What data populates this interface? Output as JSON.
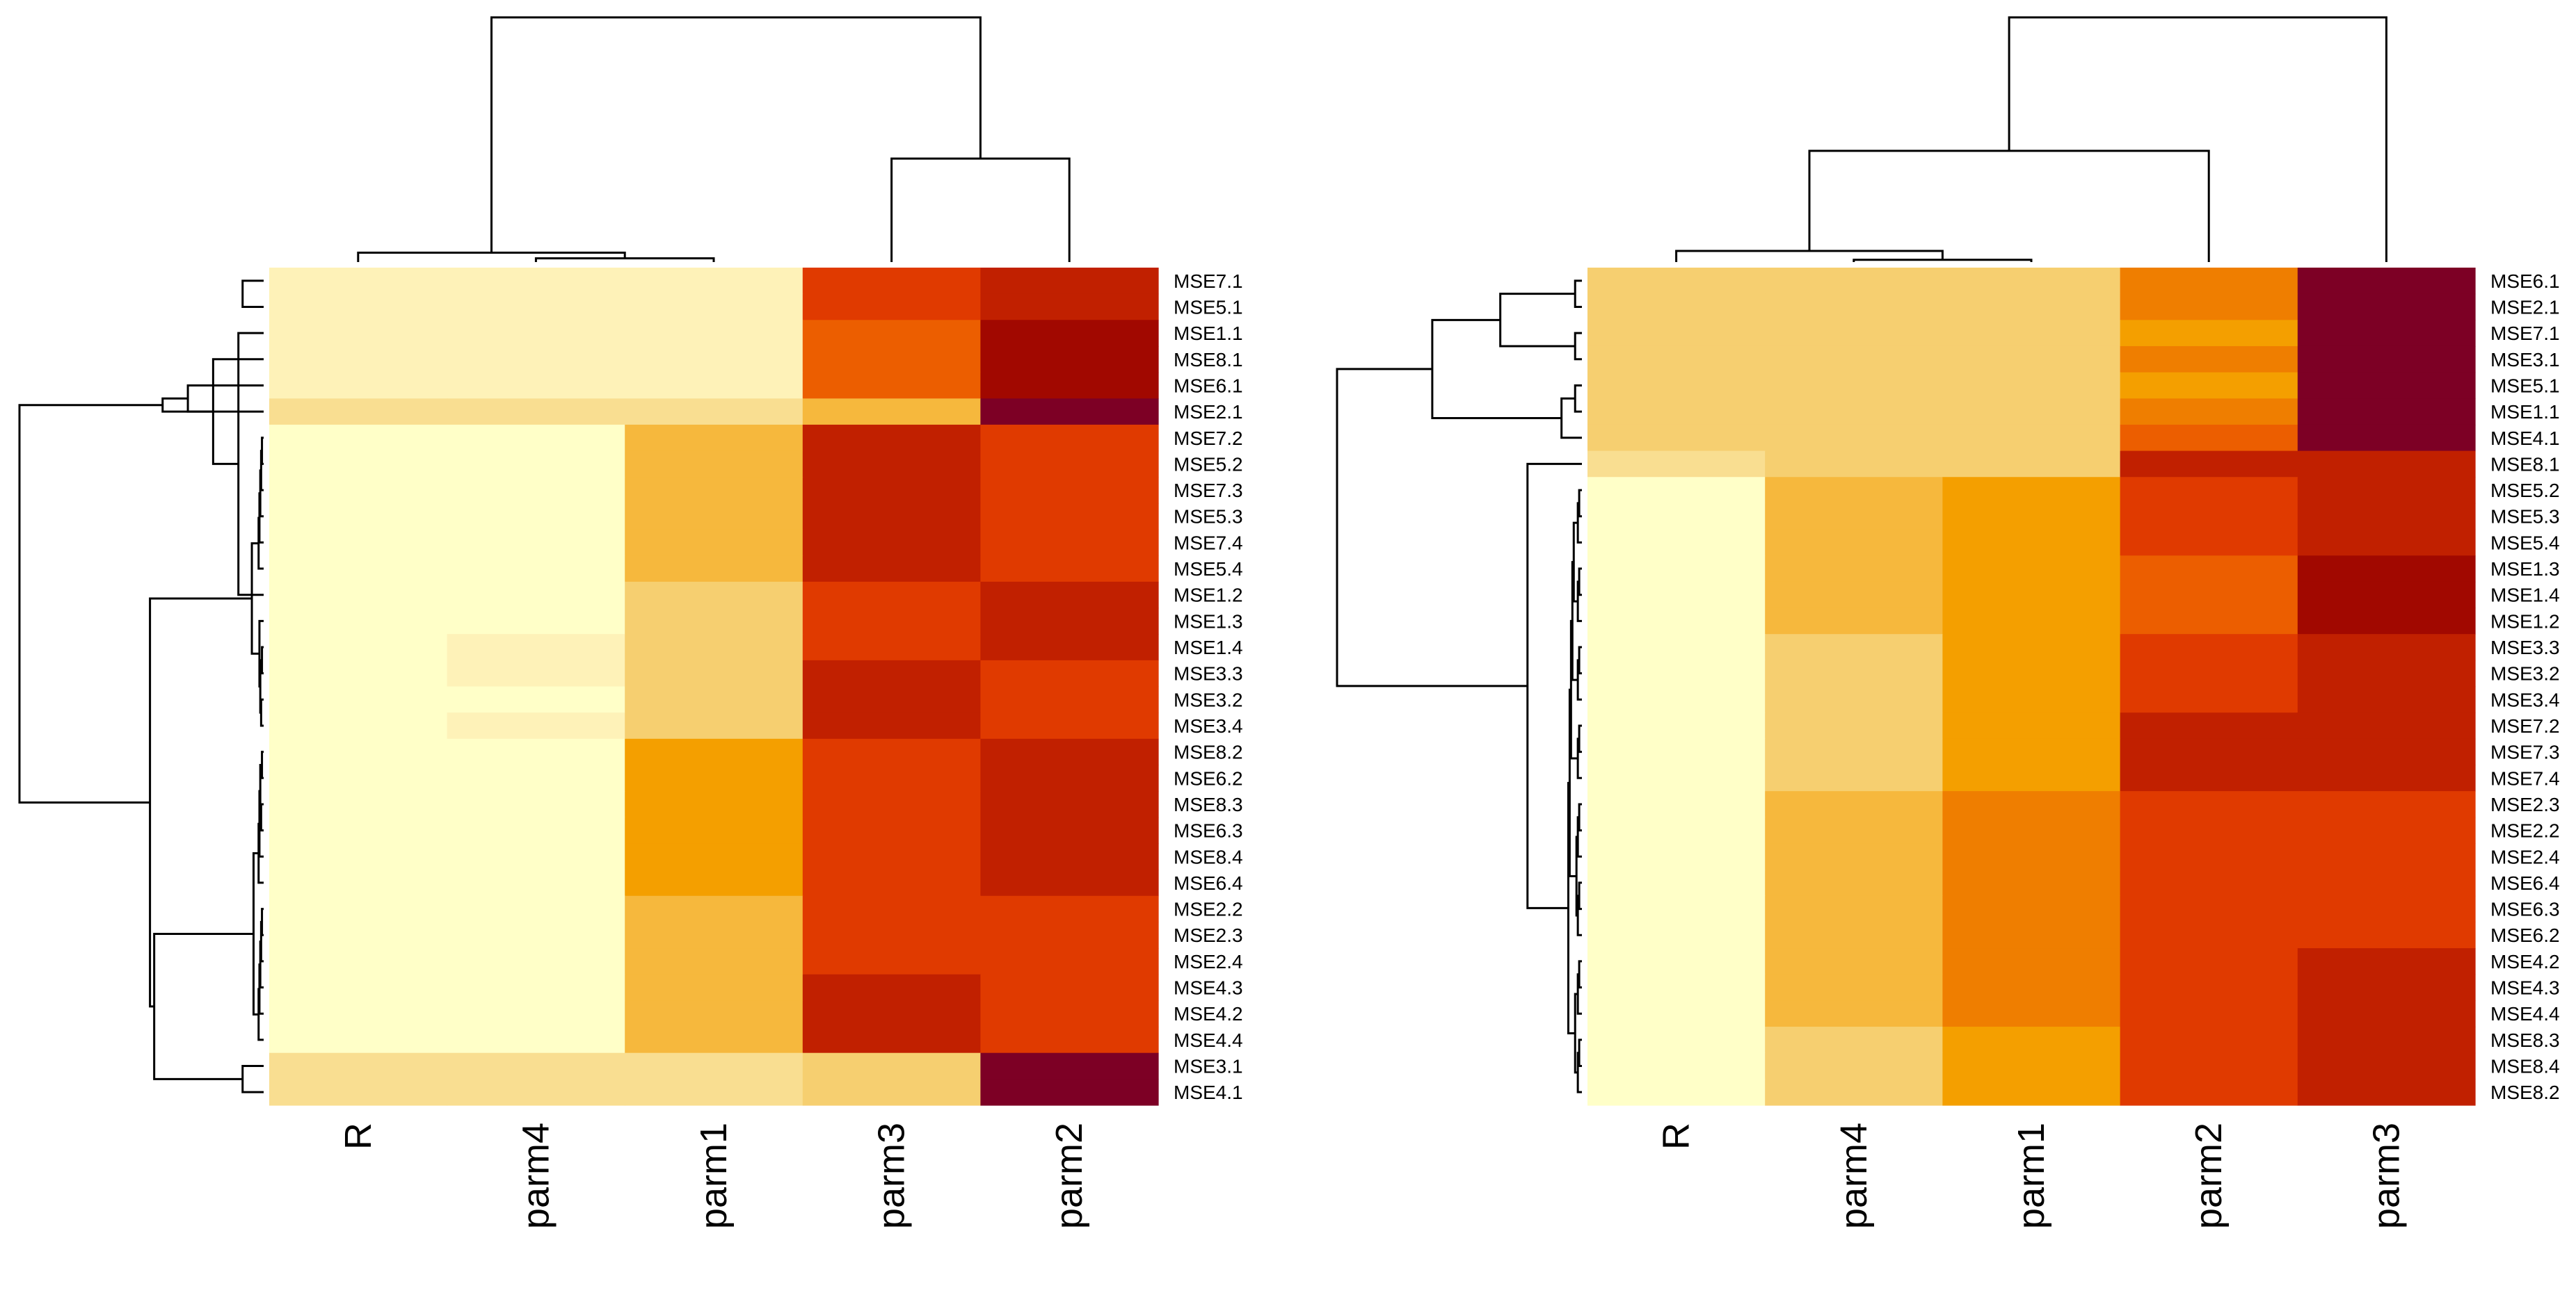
{
  "colors": {
    "palette": [
      "#FFFFC8",
      "#FEF2B8",
      "#F9DE91",
      "#F6CF70",
      "#F6B83D",
      "#F49F00",
      "#EF7E00",
      "#EC5E00",
      "#E03A00",
      "#C12000",
      "#A10800",
      "#7D0025"
    ],
    "line": "#000000",
    "background": "#FFFFFF"
  },
  "chart_data": [
    {
      "type": "heatmap",
      "name": "left",
      "title": "",
      "columns": [
        "R",
        "parm4",
        "parm1",
        "parm3",
        "parm2"
      ],
      "rows": [
        "MSE7.1",
        "MSE5.1",
        "MSE1.1",
        "MSE8.1",
        "MSE6.1",
        "MSE2.1",
        "MSE7.2",
        "MSE5.2",
        "MSE7.3",
        "MSE5.3",
        "MSE7.4",
        "MSE5.4",
        "MSE1.2",
        "MSE1.3",
        "MSE1.4",
        "MSE3.3",
        "MSE3.2",
        "MSE3.4",
        "MSE8.2",
        "MSE6.2",
        "MSE8.3",
        "MSE6.3",
        "MSE8.4",
        "MSE6.4",
        "MSE2.2",
        "MSE2.3",
        "MSE2.4",
        "MSE4.3",
        "MSE4.2",
        "MSE4.4",
        "MSE3.1",
        "MSE4.1"
      ],
      "value_scale": "0 = lightest (pale yellow), 11 = darkest (deep red)",
      "values": [
        [
          1,
          1,
          1,
          8,
          9
        ],
        [
          1,
          1,
          1,
          8,
          9
        ],
        [
          1,
          1,
          1,
          7,
          10
        ],
        [
          1,
          1,
          1,
          7,
          10
        ],
        [
          1,
          1,
          1,
          7,
          10
        ],
        [
          2,
          2,
          2,
          4,
          11
        ],
        [
          0,
          0,
          4,
          9,
          8
        ],
        [
          0,
          0,
          4,
          9,
          8
        ],
        [
          0,
          0,
          4,
          9,
          8
        ],
        [
          0,
          0,
          4,
          9,
          8
        ],
        [
          0,
          0,
          4,
          9,
          8
        ],
        [
          0,
          0,
          4,
          9,
          8
        ],
        [
          0,
          0,
          3,
          8,
          9
        ],
        [
          0,
          0,
          3,
          8,
          9
        ],
        [
          0,
          1,
          3,
          8,
          9
        ],
        [
          0,
          1,
          3,
          9,
          8
        ],
        [
          0,
          0,
          3,
          9,
          8
        ],
        [
          0,
          1,
          3,
          9,
          8
        ],
        [
          0,
          0,
          5,
          8,
          9
        ],
        [
          0,
          0,
          5,
          8,
          9
        ],
        [
          0,
          0,
          5,
          8,
          9
        ],
        [
          0,
          0,
          5,
          8,
          9
        ],
        [
          0,
          0,
          5,
          8,
          9
        ],
        [
          0,
          0,
          5,
          8,
          9
        ],
        [
          0,
          0,
          4,
          8,
          8
        ],
        [
          0,
          0,
          4,
          8,
          8
        ],
        [
          0,
          0,
          4,
          8,
          8
        ],
        [
          0,
          0,
          4,
          9,
          8
        ],
        [
          0,
          0,
          4,
          9,
          8
        ],
        [
          0,
          0,
          4,
          9,
          8
        ],
        [
          2,
          2,
          2,
          3,
          11
        ],
        [
          2,
          2,
          2,
          3,
          11
        ]
      ],
      "row_dendrogram": [
        [
          0,
          1
        ],
        [
          12,
          2
        ],
        [
          33,
          3
        ],
        [
          34,
          4
        ],
        [
          35,
          5
        ],
        [
          6,
          7
        ],
        [
          37,
          8
        ],
        [
          38,
          9
        ],
        [
          39,
          10
        ],
        [
          40,
          11
        ],
        [
          14,
          15
        ],
        [
          16,
          17
        ],
        [
          42,
          43
        ],
        [
          13,
          44
        ],
        [
          45,
          41
        ],
        [
          18,
          19
        ],
        [
          20,
          21
        ],
        [
          47,
          48
        ],
        [
          49,
          22
        ],
        [
          50,
          23
        ],
        [
          24,
          25
        ],
        [
          52,
          26
        ],
        [
          53,
          27
        ],
        [
          54,
          28
        ],
        [
          55,
          29
        ],
        [
          51,
          56
        ],
        [
          30,
          31
        ],
        [
          57,
          58
        ],
        [
          46,
          59
        ],
        [
          36,
          60
        ]
      ],
      "row_merge_heights": [
        0.025,
        0.03,
        0.06,
        0.09,
        0.12,
        0.002,
        0.003,
        0.004,
        0.005,
        0.006,
        0.002,
        0.003,
        0.004,
        0.005,
        0.014,
        0.002,
        0.003,
        0.004,
        0.005,
        0.006,
        0.002,
        0.003,
        0.004,
        0.005,
        0.006,
        0.012,
        0.025,
        0.13,
        0.135,
        0.29
      ],
      "col_dendrogram": [
        [
          1,
          2
        ],
        [
          0,
          5
        ],
        [
          3,
          4
        ],
        [
          6,
          7
        ]
      ],
      "col_merge_heights": [
        0.02,
        0.05,
        0.55,
        1.3
      ]
    },
    {
      "type": "heatmap",
      "name": "right",
      "title": "",
      "columns": [
        "R",
        "parm4",
        "parm1",
        "parm2",
        "parm3"
      ],
      "rows": [
        "MSE6.1",
        "MSE2.1",
        "MSE7.1",
        "MSE3.1",
        "MSE5.1",
        "MSE1.1",
        "MSE4.1",
        "MSE8.1",
        "MSE5.2",
        "MSE5.3",
        "MSE5.4",
        "MSE1.3",
        "MSE1.4",
        "MSE1.2",
        "MSE3.3",
        "MSE3.2",
        "MSE3.4",
        "MSE7.2",
        "MSE7.3",
        "MSE7.4",
        "MSE2.3",
        "MSE2.2",
        "MSE2.4",
        "MSE6.4",
        "MSE6.3",
        "MSE6.2",
        "MSE4.2",
        "MSE4.3",
        "MSE4.4",
        "MSE8.3",
        "MSE8.4",
        "MSE8.2"
      ],
      "value_scale": "0 = lightest (pale yellow), 11 = darkest (deep red)",
      "values": [
        [
          3,
          3,
          3,
          6,
          11
        ],
        [
          3,
          3,
          3,
          6,
          11
        ],
        [
          3,
          3,
          3,
          5,
          11
        ],
        [
          3,
          3,
          3,
          6,
          11
        ],
        [
          3,
          3,
          3,
          5,
          11
        ],
        [
          3,
          3,
          3,
          6,
          11
        ],
        [
          3,
          3,
          3,
          7,
          11
        ],
        [
          2,
          3,
          3,
          9,
          9
        ],
        [
          0,
          4,
          5,
          8,
          9
        ],
        [
          0,
          4,
          5,
          8,
          9
        ],
        [
          0,
          4,
          5,
          8,
          9
        ],
        [
          0,
          4,
          5,
          7,
          10
        ],
        [
          0,
          4,
          5,
          7,
          10
        ],
        [
          0,
          4,
          5,
          7,
          10
        ],
        [
          0,
          3,
          5,
          8,
          9
        ],
        [
          0,
          3,
          5,
          8,
          9
        ],
        [
          0,
          3,
          5,
          8,
          9
        ],
        [
          0,
          3,
          5,
          9,
          9
        ],
        [
          0,
          3,
          5,
          9,
          9
        ],
        [
          0,
          3,
          5,
          9,
          9
        ],
        [
          0,
          4,
          6,
          8,
          8
        ],
        [
          0,
          4,
          6,
          8,
          8
        ],
        [
          0,
          4,
          6,
          8,
          8
        ],
        [
          0,
          4,
          6,
          8,
          8
        ],
        [
          0,
          4,
          6,
          8,
          8
        ],
        [
          0,
          4,
          6,
          8,
          8
        ],
        [
          0,
          4,
          6,
          8,
          9
        ],
        [
          0,
          4,
          6,
          8,
          9
        ],
        [
          0,
          4,
          6,
          8,
          9
        ],
        [
          0,
          3,
          5,
          8,
          9
        ],
        [
          0,
          3,
          5,
          8,
          9
        ],
        [
          0,
          3,
          5,
          8,
          9
        ]
      ],
      "row_dendrogram": [
        [
          0,
          1
        ],
        [
          2,
          3
        ],
        [
          4,
          5
        ],
        [
          34,
          6
        ],
        [
          32,
          33
        ],
        [
          36,
          35
        ],
        [
          8,
          9
        ],
        [
          38,
          10
        ],
        [
          11,
          12
        ],
        [
          40,
          13
        ],
        [
          14,
          15
        ],
        [
          42,
          16
        ],
        [
          17,
          18
        ],
        [
          44,
          19
        ],
        [
          20,
          21
        ],
        [
          46,
          22
        ],
        [
          23,
          24
        ],
        [
          48,
          25
        ],
        [
          47,
          49
        ],
        [
          26,
          27
        ],
        [
          51,
          28
        ],
        [
          29,
          30
        ],
        [
          53,
          31
        ],
        [
          52,
          54
        ],
        [
          39,
          41
        ],
        [
          56,
          43
        ],
        [
          57,
          45
        ],
        [
          58,
          50
        ],
        [
          59,
          55
        ],
        [
          7,
          60
        ],
        [
          37,
          61
        ]
      ],
      "row_merge_heights": [
        0.005,
        0.005,
        0.005,
        0.015,
        0.06,
        0.11,
        0.002,
        0.003,
        0.002,
        0.003,
        0.002,
        0.003,
        0.002,
        0.003,
        0.002,
        0.003,
        0.002,
        0.003,
        0.004,
        0.002,
        0.003,
        0.002,
        0.003,
        0.005,
        0.006,
        0.007,
        0.008,
        0.009,
        0.01,
        0.04,
        0.18
      ],
      "col_dendrogram": [
        [
          1,
          2
        ],
        [
          0,
          5
        ],
        [
          3,
          6
        ],
        [
          4,
          7
        ]
      ],
      "col_merge_heights": [
        0.01,
        0.05,
        0.5,
        1.1
      ]
    }
  ]
}
